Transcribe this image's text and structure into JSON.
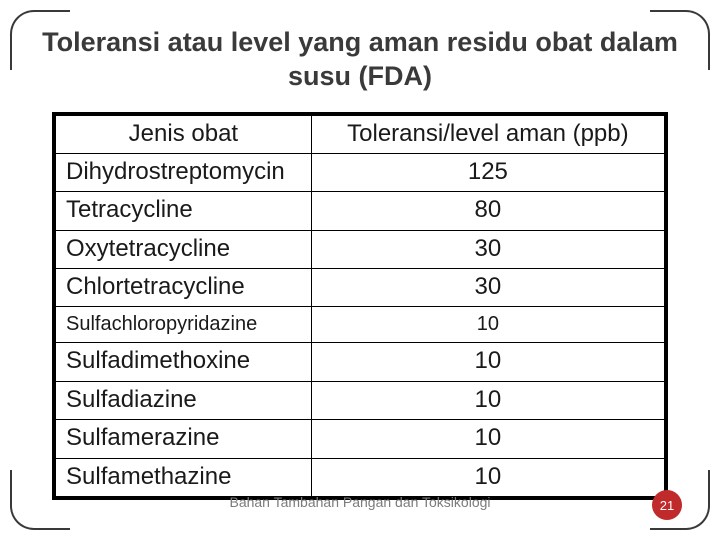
{
  "title": "Toleransi atau level yang aman residu obat dalam susu (FDA)",
  "table": {
    "columns": [
      "Jenis obat",
      "Toleransi/level aman (ppb)"
    ],
    "rows": [
      [
        "Dihydrostreptomycin",
        "125"
      ],
      [
        "Tetracycline",
        "80"
      ],
      [
        "Oxytetracycline",
        "30"
      ],
      [
        "Chlortetracycline",
        "30"
      ],
      [
        "Sulfachloropyridazine",
        "10"
      ],
      [
        "Sulfadimethoxine",
        "10"
      ],
      [
        "Sulfadiazine",
        "10"
      ],
      [
        "Sulfamerazine",
        "10"
      ],
      [
        "Sulfamethazine",
        "10"
      ]
    ],
    "small_row_indices": [
      4
    ],
    "col_widths_pct": [
      42,
      58
    ],
    "border_color": "#000000",
    "text_color": "#1a1a1a",
    "font_size_pt": 24,
    "small_font_size_pt": 20
  },
  "footer": "Bahan Tambahan Pangan dan Toksikologi",
  "page_number": "21",
  "colors": {
    "background": "#ffffff",
    "title": "#3a3a3a",
    "corner_border": "#393939",
    "footer_text": "#7b7b7b",
    "page_badge_bg": "#c12a2a",
    "page_badge_text": "#ffffff"
  }
}
